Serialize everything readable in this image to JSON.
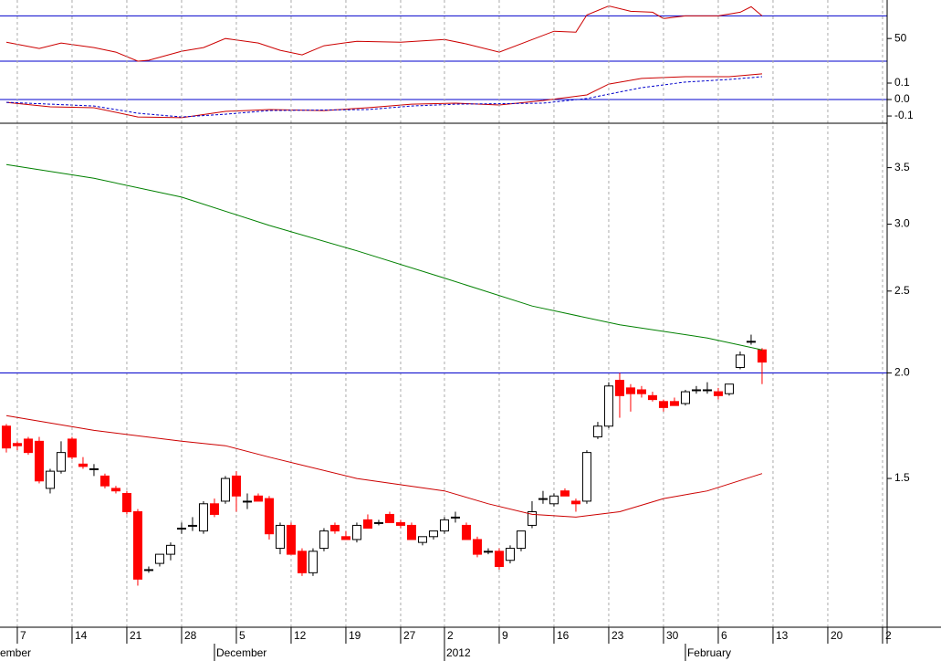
{
  "chart_data": [
    {
      "type": "line",
      "xlim": [
        -0.58,
        80.42
      ],
      "ylim": [
        30,
        84
      ],
      "yticks": [
        50
      ],
      "hlines": [
        70,
        30
      ],
      "hline_color": "#0000cc",
      "series": [
        {
          "color": "#cc0000",
          "x": [
            0,
            3,
            5,
            8,
            10,
            12,
            13,
            16,
            18,
            20,
            23,
            25,
            27,
            29,
            32,
            36,
            40,
            42,
            45,
            50,
            52,
            53,
            55,
            57,
            59,
            60,
            62,
            65,
            67,
            68,
            69
          ],
          "values": [
            46.8,
            41.2,
            46,
            42,
            38,
            30,
            30.8,
            38.8,
            42,
            50,
            46,
            39.6,
            35.6,
            43.6,
            47.6,
            46.8,
            49.2,
            45.2,
            38,
            56.4,
            55.6,
            70.8,
            78.8,
            74,
            73.2,
            67.6,
            70,
            70,
            73.2,
            78,
            70
          ]
        }
      ]
    },
    {
      "type": "line",
      "xlim": [
        -0.58,
        80.42
      ],
      "ylim": [
        -0.144,
        0.233
      ],
      "yticks": [
        0.1,
        {
          "value": 0,
          "label": "0.0"
        },
        -0.1
      ],
      "hlines": [
        0
      ],
      "hline_color": "#0000cc",
      "series": [
        {
          "color": "#cc0000",
          "x": [
            0,
            4,
            8,
            12,
            16,
            20,
            24,
            29,
            33,
            37,
            41,
            45,
            49,
            53,
            55,
            58,
            62,
            66,
            69
          ],
          "values": [
            -0.017,
            -0.044,
            -0.05,
            -0.106,
            -0.11,
            -0.072,
            -0.061,
            -0.067,
            -0.05,
            -0.028,
            -0.022,
            -0.033,
            -0.006,
            0.028,
            0.094,
            0.128,
            0.139,
            0.139,
            0.156
          ]
        },
        {
          "color": "#0000cc",
          "dashed": true,
          "x": [
            0,
            8,
            12,
            16,
            20,
            24,
            33,
            37,
            41,
            49,
            53,
            58,
            62,
            66,
            69
          ],
          "values": [
            -0.017,
            -0.039,
            -0.083,
            -0.106,
            -0.089,
            -0.067,
            -0.061,
            -0.039,
            -0.028,
            -0.022,
            0.006,
            0.072,
            0.106,
            0.122,
            0.139
          ]
        }
      ]
    },
    {
      "type": "candlestick",
      "xlim": [
        -0.58,
        80.42
      ],
      "ylim": [
        1.0,
        3.95
      ],
      "log_scale": true,
      "yticks": [
        3.5,
        {
          "value": 3,
          "label": "3.0"
        },
        2.5,
        {
          "value": 2,
          "label": "2.0"
        },
        1.5
      ],
      "hlines": [
        2
      ],
      "hline_color": "#0000cc",
      "up_color": "#ffffff",
      "down_color": "#ff0000",
      "grid": true,
      "grid_color": "#aaaaaa",
      "xticks": [
        {
          "value": 1,
          "label": "7"
        },
        {
          "value": 6,
          "label": "14"
        },
        {
          "value": 11,
          "label": "21"
        },
        {
          "value": 16,
          "label": "28"
        },
        {
          "value": 21,
          "label": "5"
        },
        {
          "value": 26,
          "label": "12"
        },
        {
          "value": 31,
          "label": "19"
        },
        {
          "value": 36,
          "label": "27"
        },
        {
          "value": 40,
          "label": "2"
        },
        {
          "value": 45,
          "label": "9"
        },
        {
          "value": 50,
          "label": "16"
        },
        {
          "value": 55,
          "label": "23"
        },
        {
          "value": 60,
          "label": "30"
        },
        {
          "value": 65,
          "label": "6"
        },
        {
          "value": 70,
          "label": "13"
        },
        {
          "value": 75,
          "label": "20"
        },
        {
          "value": 80,
          "label": "2"
        }
      ],
      "months": [
        {
          "label": "ember"
        },
        {
          "value": 19,
          "label": "December"
        },
        {
          "value": 40,
          "label": "2012"
        },
        {
          "value": 62,
          "label": "February"
        }
      ],
      "x": [
        0,
        1,
        2,
        3,
        4,
        5,
        6,
        7,
        8,
        9,
        10,
        11,
        12,
        13,
        14,
        15,
        16,
        17,
        18,
        19,
        20,
        21,
        22,
        23,
        24,
        25,
        26,
        27,
        28,
        29,
        30,
        31,
        32,
        33,
        34,
        35,
        36,
        37,
        38,
        39,
        40,
        41,
        42,
        43,
        44,
        45,
        46,
        47,
        48,
        49,
        50,
        51,
        52,
        53,
        54,
        55,
        56,
        57,
        58,
        59,
        60,
        61,
        62,
        63,
        64,
        65,
        66,
        67,
        68,
        69
      ],
      "open": [
        1.73,
        1.65,
        1.67,
        1.66,
        1.46,
        1.53,
        1.67,
        1.56,
        1.54,
        1.51,
        1.46,
        1.44,
        1.37,
        1.17,
        1.19,
        1.22,
        1.31,
        1.32,
        1.3,
        1.4,
        1.41,
        1.51,
        1.41,
        1.43,
        1.42,
        1.24,
        1.32,
        1.23,
        1.16,
        1.24,
        1.32,
        1.28,
        1.27,
        1.34,
        1.33,
        1.36,
        1.33,
        1.32,
        1.26,
        1.28,
        1.3,
        1.35,
        1.32,
        1.27,
        1.23,
        1.23,
        1.2,
        1.24,
        1.32,
        1.42,
        1.4,
        1.45,
        1.41,
        1.41,
        1.68,
        1.73,
        1.96,
        1.92,
        1.91,
        1.88,
        1.85,
        1.85,
        1.84,
        1.91,
        1.91,
        1.9,
        1.89,
        2.03,
        2.18,
        2.13
      ],
      "high": [
        1.74,
        1.66,
        1.68,
        1.68,
        1.54,
        1.66,
        1.68,
        1.59,
        1.56,
        1.52,
        1.47,
        1.45,
        1.38,
        1.18,
        1.22,
        1.26,
        1.33,
        1.35,
        1.41,
        1.42,
        1.51,
        1.53,
        1.44,
        1.44,
        1.43,
        1.33,
        1.33,
        1.24,
        1.24,
        1.31,
        1.33,
        1.3,
        1.33,
        1.36,
        1.34,
        1.37,
        1.34,
        1.33,
        1.28,
        1.3,
        1.35,
        1.37,
        1.33,
        1.28,
        1.24,
        1.24,
        1.25,
        1.3,
        1.41,
        1.45,
        1.44,
        1.46,
        1.42,
        1.62,
        1.75,
        1.95,
        2.0,
        1.94,
        1.93,
        1.9,
        1.86,
        1.87,
        1.91,
        1.93,
        1.95,
        1.92,
        1.94,
        2.12,
        2.22,
        2.14
      ],
      "low": [
        1.61,
        1.62,
        1.6,
        1.48,
        1.44,
        1.52,
        1.58,
        1.54,
        1.51,
        1.46,
        1.44,
        1.36,
        1.12,
        1.16,
        1.18,
        1.2,
        1.29,
        1.3,
        1.29,
        1.35,
        1.4,
        1.37,
        1.38,
        1.41,
        1.27,
        1.22,
        1.22,
        1.15,
        1.15,
        1.23,
        1.29,
        1.27,
        1.26,
        1.31,
        1.32,
        1.33,
        1.31,
        1.27,
        1.25,
        1.27,
        1.29,
        1.33,
        1.27,
        1.21,
        1.22,
        1.17,
        1.19,
        1.23,
        1.31,
        1.4,
        1.39,
        1.43,
        1.37,
        1.4,
        1.67,
        1.72,
        1.77,
        1.8,
        1.87,
        1.85,
        1.8,
        1.83,
        1.83,
        1.89,
        1.89,
        1.86,
        1.88,
        2.02,
        2.16,
        1.94
      ],
      "close": [
        1.63,
        1.64,
        1.61,
        1.49,
        1.53,
        1.61,
        1.59,
        1.55,
        1.54,
        1.47,
        1.45,
        1.37,
        1.14,
        1.17,
        1.22,
        1.25,
        1.31,
        1.32,
        1.4,
        1.36,
        1.5,
        1.43,
        1.41,
        1.41,
        1.29,
        1.32,
        1.22,
        1.16,
        1.23,
        1.3,
        1.3,
        1.27,
        1.32,
        1.31,
        1.33,
        1.33,
        1.32,
        1.27,
        1.28,
        1.3,
        1.34,
        1.35,
        1.27,
        1.22,
        1.23,
        1.18,
        1.24,
        1.3,
        1.37,
        1.42,
        1.43,
        1.43,
        1.4,
        1.61,
        1.73,
        1.93,
        1.88,
        1.89,
        1.89,
        1.86,
        1.82,
        1.83,
        1.9,
        1.91,
        1.91,
        1.88,
        1.94,
        2.1,
        2.18,
        2.06
      ],
      "series": [
        {
          "color": "#008000",
          "x": [
            0,
            8,
            16,
            24,
            32,
            40,
            48,
            56,
            64,
            69
          ],
          "values": [
            3.53,
            3.4,
            3.23,
            2.99,
            2.79,
            2.59,
            2.4,
            2.28,
            2.2,
            2.13
          ]
        },
        {
          "color": "#cc0000",
          "x": [
            0,
            8,
            16,
            20,
            24,
            32,
            40,
            44,
            48,
            52,
            56,
            60,
            64,
            69
          ],
          "values": [
            1.78,
            1.71,
            1.66,
            1.64,
            1.59,
            1.5,
            1.45,
            1.4,
            1.36,
            1.35,
            1.37,
            1.42,
            1.45,
            1.52
          ]
        }
      ]
    }
  ]
}
